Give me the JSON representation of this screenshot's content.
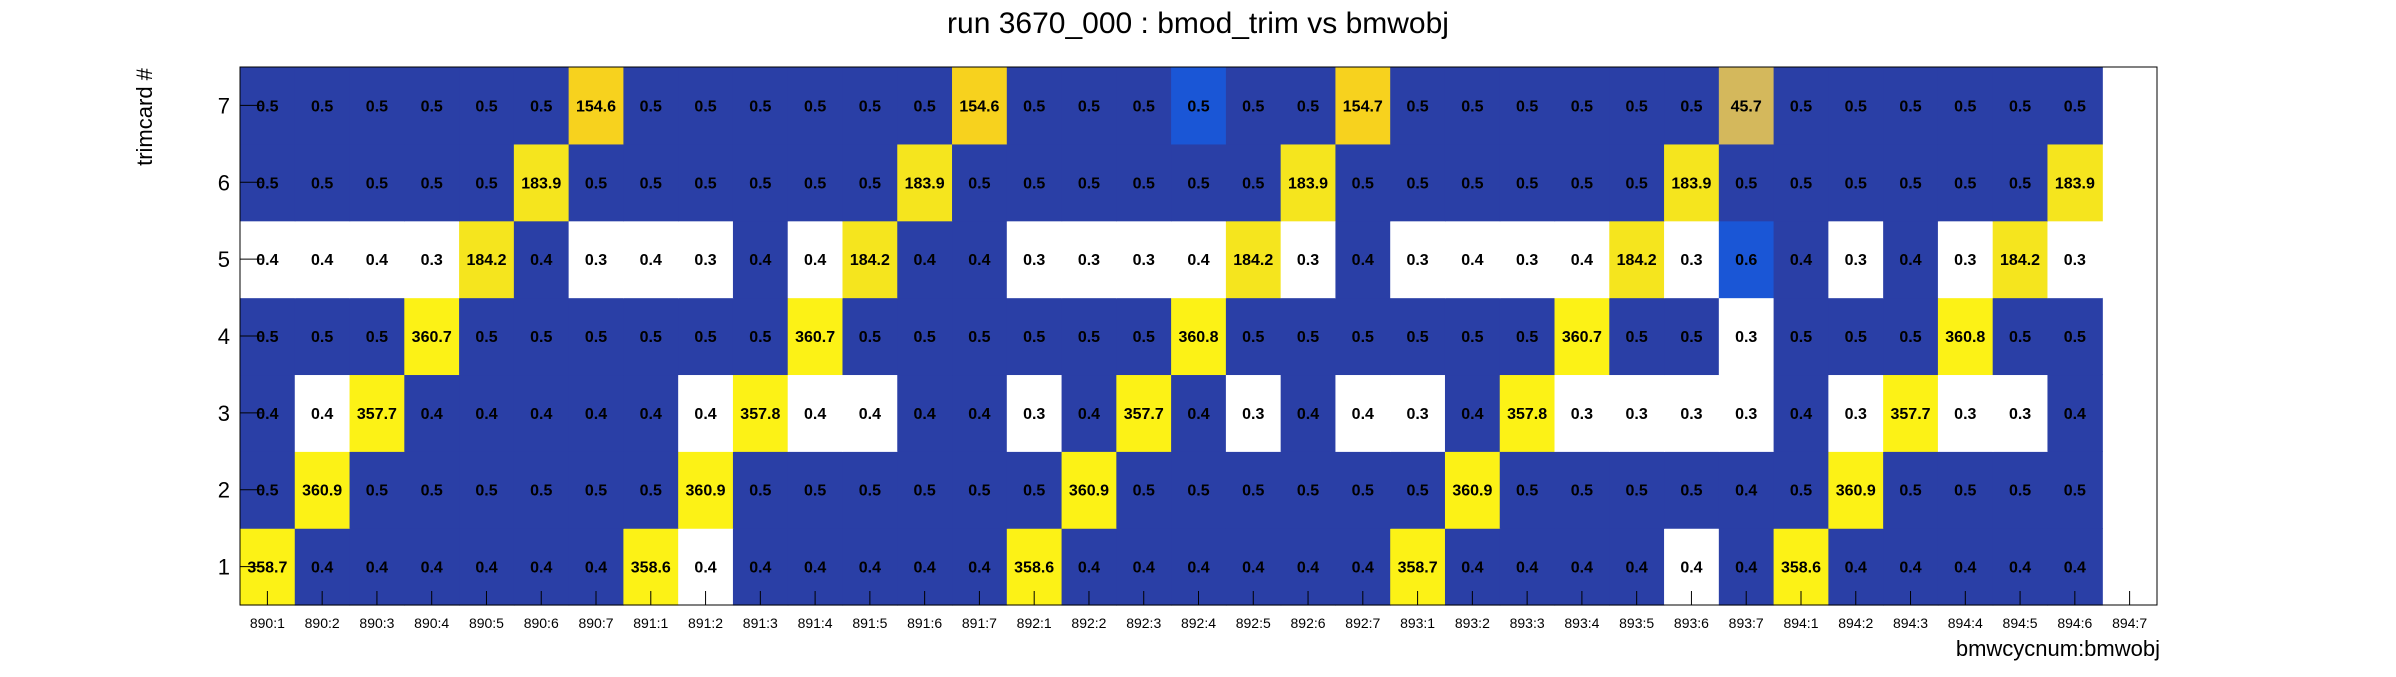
{
  "chart_data": {
    "type": "heatmap",
    "title": "run 3670_000 : bmod_trim vs bmwobj",
    "xlabel": "bmwcycnum:bmwobj",
    "ylabel": "trimcard #",
    "x_categories": [
      "890:1",
      "890:2",
      "890:3",
      "890:4",
      "890:5",
      "890:6",
      "890:7",
      "891:1",
      "891:2",
      "891:3",
      "891:4",
      "891:5",
      "891:6",
      "891:7",
      "892:1",
      "892:2",
      "892:3",
      "892:4",
      "892:5",
      "892:6",
      "892:7",
      "893:1",
      "893:2",
      "893:3",
      "893:4",
      "893:5",
      "893:6",
      "893:7",
      "894:1",
      "894:2",
      "894:3",
      "894:4",
      "894:5",
      "894:6",
      "894:7"
    ],
    "y_categories": [
      "1",
      "2",
      "3",
      "4",
      "5",
      "6",
      "7"
    ],
    "rows": [
      {
        "trimcard": "1",
        "values": [
          "358.7",
          "0.4",
          "0.4",
          "0.4",
          "0.4",
          "0.4",
          "0.4",
          "358.6",
          "0.4",
          "0.4",
          "0.4",
          "0.4",
          "0.4",
          "0.4",
          "358.6",
          "0.4",
          "0.4",
          "0.4",
          "0.4",
          "0.4",
          "0.4",
          "358.7",
          "0.4",
          "0.4",
          "0.4",
          "0.4",
          "0.4",
          "0.4",
          "358.6",
          "0.4",
          "0.4",
          "0.4",
          "0.4",
          "0.4",
          null
        ]
      },
      {
        "trimcard": "2",
        "values": [
          "0.5",
          "360.9",
          "0.5",
          "0.5",
          "0.5",
          "0.5",
          "0.5",
          "0.5",
          "360.9",
          "0.5",
          "0.5",
          "0.5",
          "0.5",
          "0.5",
          "0.5",
          "360.9",
          "0.5",
          "0.5",
          "0.5",
          "0.5",
          "0.5",
          "0.5",
          "360.9",
          "0.5",
          "0.5",
          "0.5",
          "0.5",
          "0.4",
          "0.5",
          "360.9",
          "0.5",
          "0.5",
          "0.5",
          "0.5",
          null
        ]
      },
      {
        "trimcard": "3",
        "values": [
          "0.4",
          "0.4",
          "357.7",
          "0.4",
          "0.4",
          "0.4",
          "0.4",
          "0.4",
          "0.4",
          "357.8",
          "0.4",
          "0.4",
          "0.4",
          "0.4",
          "0.3",
          "0.4",
          "357.7",
          "0.4",
          "0.3",
          "0.4",
          "0.4",
          "0.3",
          "0.4",
          "357.8",
          "0.3",
          "0.3",
          "0.3",
          "0.3",
          "0.4",
          "0.3",
          "357.7",
          "0.3",
          "0.3",
          "0.4",
          null
        ]
      },
      {
        "trimcard": "4",
        "values": [
          "0.5",
          "0.5",
          "0.5",
          "360.7",
          "0.5",
          "0.5",
          "0.5",
          "0.5",
          "0.5",
          "0.5",
          "360.7",
          "0.5",
          "0.5",
          "0.5",
          "0.5",
          "0.5",
          "0.5",
          "360.8",
          "0.5",
          "0.5",
          "0.5",
          "0.5",
          "0.5",
          "0.5",
          "360.7",
          "0.5",
          "0.5",
          "0.3",
          "0.5",
          "0.5",
          "0.5",
          "360.8",
          "0.5",
          "0.5",
          null
        ]
      },
      {
        "trimcard": "5",
        "values": [
          "0.4",
          "0.4",
          "0.4",
          "0.3",
          "184.2",
          "0.4",
          "0.3",
          "0.4",
          "0.3",
          "0.4",
          "0.4",
          "184.2",
          "0.4",
          "0.4",
          "0.3",
          "0.3",
          "0.3",
          "0.4",
          "184.2",
          "0.3",
          "0.4",
          "0.3",
          "0.4",
          "0.3",
          "0.4",
          "184.2",
          "0.3",
          "0.6",
          "0.4",
          "0.3",
          "0.4",
          "0.3",
          "184.2",
          "0.3",
          null
        ]
      },
      {
        "trimcard": "6",
        "values": [
          "0.5",
          "0.5",
          "0.5",
          "0.5",
          "0.5",
          "183.9",
          "0.5",
          "0.5",
          "0.5",
          "0.5",
          "0.5",
          "0.5",
          "183.9",
          "0.5",
          "0.5",
          "0.5",
          "0.5",
          "0.5",
          "0.5",
          "183.9",
          "0.5",
          "0.5",
          "0.5",
          "0.5",
          "0.5",
          "0.5",
          "183.9",
          "0.5",
          "0.5",
          "0.5",
          "0.5",
          "0.5",
          "0.5",
          "183.9",
          null
        ]
      },
      {
        "trimcard": "7",
        "values": [
          "0.5",
          "0.5",
          "0.5",
          "0.5",
          "0.5",
          "0.5",
          "154.6",
          "0.5",
          "0.5",
          "0.5",
          "0.5",
          "0.5",
          "0.5",
          "154.6",
          "0.5",
          "0.5",
          "0.5",
          "0.5",
          "0.5",
          "0.5",
          "154.7",
          "0.5",
          "0.5",
          "0.5",
          "0.5",
          "0.5",
          "0.5",
          "45.7",
          "0.5",
          "0.5",
          "0.5",
          "0.5",
          "0.5",
          "0.5",
          null
        ]
      }
    ],
    "white_cells": [
      [
        "1",
        8
      ],
      [
        "1",
        26
      ],
      [
        "3",
        1
      ],
      [
        "3",
        8
      ],
      [
        "3",
        10
      ],
      [
        "3",
        11
      ],
      [
        "3",
        14
      ],
      [
        "3",
        18
      ],
      [
        "3",
        20
      ],
      [
        "3",
        21
      ],
      [
        "3",
        24
      ],
      [
        "3",
        25
      ],
      [
        "3",
        26
      ],
      [
        "3",
        27
      ],
      [
        "3",
        29
      ],
      [
        "3",
        31
      ],
      [
        "3",
        32
      ],
      [
        "4",
        27
      ],
      [
        "5",
        0
      ],
      [
        "5",
        1
      ],
      [
        "5",
        2
      ],
      [
        "5",
        3
      ],
      [
        "5",
        6
      ],
      [
        "5",
        7
      ],
      [
        "5",
        8
      ],
      [
        "5",
        10
      ],
      [
        "5",
        14
      ],
      [
        "5",
        15
      ],
      [
        "5",
        16
      ],
      [
        "5",
        17
      ],
      [
        "5",
        19
      ],
      [
        "5",
        21
      ],
      [
        "5",
        22
      ],
      [
        "5",
        23
      ],
      [
        "5",
        24
      ],
      [
        "5",
        26
      ],
      [
        "5",
        29
      ],
      [
        "5",
        31
      ],
      [
        "5",
        33
      ]
    ],
    "special_cells": [
      {
        "trimcard": "5",
        "col": 27,
        "color": "#1a56d6"
      },
      {
        "trimcard": "7",
        "col": 17,
        "color": "#1a56d6"
      },
      {
        "trimcard": "7",
        "col": 27,
        "color": "#d4b85c"
      },
      {
        "trimcard": "7",
        "col": 6,
        "color": "#f7d21e"
      },
      {
        "trimcard": "7",
        "col": 13,
        "color": "#f7d21e"
      },
      {
        "trimcard": "7",
        "col": 20,
        "color": "#f7d21e"
      },
      {
        "trimcard": "6",
        "col": 5,
        "color": "#f5e51e"
      },
      {
        "trimcard": "6",
        "col": 12,
        "color": "#f5e51e"
      },
      {
        "trimcard": "6",
        "col": 19,
        "color": "#f5e51e"
      },
      {
        "trimcard": "6",
        "col": 26,
        "color": "#f5e51e"
      },
      {
        "trimcard": "6",
        "col": 33,
        "color": "#f5e51e"
      },
      {
        "trimcard": "5",
        "col": 4,
        "color": "#f5e51e"
      },
      {
        "trimcard": "5",
        "col": 11,
        "color": "#f5e51e"
      },
      {
        "trimcard": "5",
        "col": 18,
        "color": "#f5e51e"
      },
      {
        "trimcard": "5",
        "col": 25,
        "color": "#f5e51e"
      },
      {
        "trimcard": "5",
        "col": 32,
        "color": "#f5e51e"
      }
    ],
    "colors": {
      "low": "#2a3fa6",
      "high": "#fcf216",
      "empty": "#ffffff",
      "axis": "#000000"
    },
    "last_column_empty": true
  }
}
